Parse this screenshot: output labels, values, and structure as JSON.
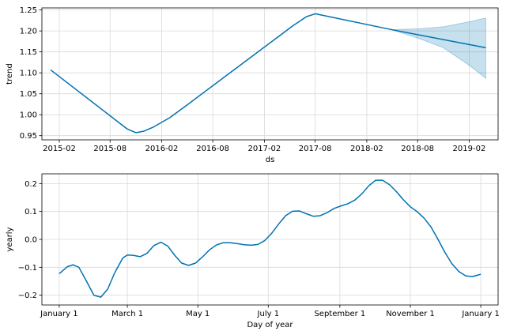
{
  "colors": {
    "line": "#0072B2",
    "band": "#0072B2",
    "grid": "#d9d9d9"
  },
  "chart_data": [
    {
      "type": "line",
      "xlabel": "ds",
      "ylabel": "trend",
      "x_axis_type": "date",
      "xlim": [
        "2014-12-01",
        "2019-05-15"
      ],
      "ylim": [
        0.94,
        1.255
      ],
      "x_ticks": [
        "2015-02",
        "2015-08",
        "2016-02",
        "2016-08",
        "2017-02",
        "2017-08",
        "2018-02",
        "2018-08",
        "2019-02"
      ],
      "y_ticks": [
        0.95,
        1.0,
        1.05,
        1.1,
        1.15,
        1.2,
        1.25
      ],
      "grid": true,
      "series": [
        {
          "x": [
            "2015-01-01",
            "2015-10-01",
            "2015-11-01",
            "2015-12-01",
            "2016-01-01",
            "2016-03-01",
            "2016-05-01",
            "2017-05-15",
            "2017-07-01",
            "2017-08-01",
            "2018-05-01",
            "2019-04-01"
          ],
          "y": [
            1.107,
            0.966,
            0.957,
            0.961,
            0.97,
            0.993,
            1.023,
            1.213,
            1.234,
            1.241,
            1.203,
            1.16
          ]
        }
      ],
      "band": {
        "x": [
          "2018-05-01",
          "2018-08-01",
          "2018-11-01",
          "2019-02-01",
          "2019-04-01"
        ],
        "upper": [
          1.203,
          1.205,
          1.21,
          1.222,
          1.231
        ],
        "lower": [
          1.203,
          1.183,
          1.16,
          1.118,
          1.087
        ]
      }
    },
    {
      "type": "line",
      "xlabel": "Day of year",
      "ylabel": "yearly",
      "xlim": [
        -15,
        380
      ],
      "ylim": [
        -0.235,
        0.235
      ],
      "x_ticks": [
        {
          "label": "January 1",
          "value": 0
        },
        {
          "label": "March 1",
          "value": 59
        },
        {
          "label": "May 1",
          "value": 120
        },
        {
          "label": "July 1",
          "value": 181
        },
        {
          "label": "September 1",
          "value": 243
        },
        {
          "label": "November 1",
          "value": 304
        },
        {
          "label": "January 1",
          "value": 365
        }
      ],
      "y_ticks": [
        -0.2,
        -0.1,
        0.0,
        0.1,
        0.2
      ],
      "grid": true,
      "series": [
        {
          "x": [
            0,
            7,
            12,
            17,
            23,
            30,
            36,
            42,
            48,
            55,
            59,
            64,
            70,
            76,
            82,
            88,
            94,
            100,
            106,
            112,
            118,
            124,
            130,
            136,
            142,
            148,
            154,
            160,
            166,
            172,
            178,
            184,
            190,
            196,
            202,
            208,
            214,
            220,
            226,
            232,
            238,
            244,
            250,
            256,
            262,
            268,
            274,
            280,
            286,
            292,
            298,
            304,
            310,
            316,
            322,
            328,
            334,
            340,
            346,
            352,
            358,
            365
          ],
          "y": [
            -0.123,
            -0.098,
            -0.091,
            -0.1,
            -0.145,
            -0.2,
            -0.207,
            -0.178,
            -0.12,
            -0.067,
            -0.056,
            -0.057,
            -0.062,
            -0.05,
            -0.022,
            -0.01,
            -0.024,
            -0.057,
            -0.085,
            -0.093,
            -0.085,
            -0.063,
            -0.038,
            -0.02,
            -0.012,
            -0.012,
            -0.015,
            -0.019,
            -0.021,
            -0.018,
            -0.004,
            0.022,
            0.055,
            0.085,
            0.101,
            0.102,
            0.092,
            0.083,
            0.085,
            0.096,
            0.111,
            0.12,
            0.128,
            0.141,
            0.163,
            0.192,
            0.212,
            0.212,
            0.196,
            0.171,
            0.142,
            0.117,
            0.099,
            0.076,
            0.044,
            0.0,
            -0.047,
            -0.087,
            -0.115,
            -0.131,
            -0.133,
            -0.125
          ]
        }
      ]
    }
  ]
}
